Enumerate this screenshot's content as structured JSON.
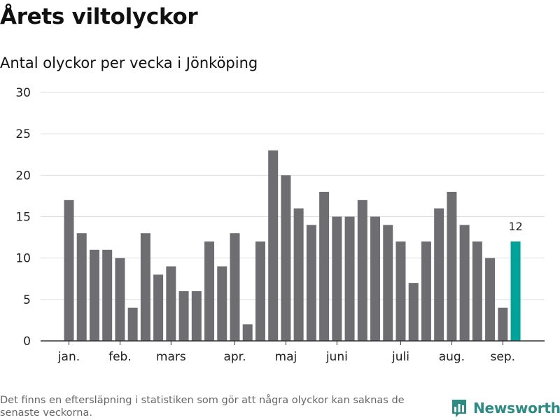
{
  "title": "Årets viltolyckor",
  "subtitle": "Antal olyckor per vecka i Jönköping",
  "footnote": "Det finns en eftersläpning i statistiken som gör att några olyckor kan saknas de senaste veckorna.",
  "brand": {
    "name": "Newsworthy",
    "color": "#2a8c83"
  },
  "colors": {
    "bar": "#6e6d72",
    "highlight": "#00a39a",
    "grid": "#dddddd",
    "axis": "#333333"
  },
  "chart_data": {
    "type": "bar",
    "ylim": [
      0,
      30
    ],
    "yticks": [
      0,
      5,
      10,
      15,
      20,
      25,
      30
    ],
    "grid": true,
    "values": [
      17,
      13,
      11,
      11,
      10,
      4,
      13,
      8,
      9,
      6,
      6,
      12,
      9,
      13,
      2,
      12,
      23,
      20,
      16,
      14,
      18,
      15,
      15,
      17,
      15,
      14,
      12,
      7,
      12,
      16,
      18,
      14,
      12,
      10,
      4,
      12
    ],
    "highlight_index": 35,
    "highlight_label": "12",
    "month_ticks": [
      {
        "label": "jan.",
        "bar": 0
      },
      {
        "label": "feb.",
        "bar": 4
      },
      {
        "label": "mars",
        "bar": 8
      },
      {
        "label": "apr.",
        "bar": 13
      },
      {
        "label": "maj",
        "bar": 17
      },
      {
        "label": "juni",
        "bar": 21
      },
      {
        "label": "juli",
        "bar": 26
      },
      {
        "label": "aug.",
        "bar": 30
      },
      {
        "label": "sep.",
        "bar": 34
      }
    ]
  }
}
